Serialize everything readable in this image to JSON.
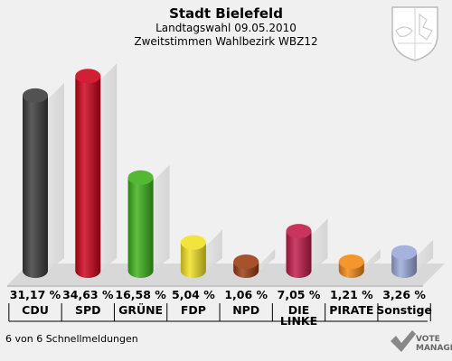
{
  "header": {
    "title": "Stadt Bielefeld",
    "line1": "Landtagswahl 09.05.2010",
    "line2": "Zweitstimmen Wahlbezirk WBZ12"
  },
  "footer": {
    "note": "6 von 6 Schnellmeldungen",
    "watermark_line1": "VOTE",
    "watermark_line2": "MANAGER"
  },
  "chart_data": {
    "type": "bar",
    "title": "Stadt Bielefeld",
    "categories": [
      "CDU",
      "SPD",
      "GRÜNE",
      "FDP",
      "NPD",
      "DIE LINKE",
      "PIRATE",
      "Sonstige"
    ],
    "category_lines": [
      [
        "CDU"
      ],
      [
        "SPD"
      ],
      [
        "GRÜNE"
      ],
      [
        "FDP"
      ],
      [
        "NPD"
      ],
      [
        "DIE",
        "LINKE"
      ],
      [
        "PIRATE"
      ],
      [
        "Sonstige"
      ]
    ],
    "values": [
      31.17,
      34.63,
      16.58,
      5.04,
      1.06,
      7.05,
      1.21,
      3.26
    ],
    "value_labels": [
      "31,17 %",
      "34,63 %",
      "16,58 %",
      "5,04 %",
      "1,06 %",
      "7,05 %",
      "1,21 %",
      "3,26 %"
    ],
    "colors": [
      "#3a3a3a",
      "#cc0018",
      "#3cb01a",
      "#f0e020",
      "#9a3a10",
      "#c01848",
      "#f08810",
      "#98a8d8"
    ],
    "ylim": [
      0,
      35
    ],
    "grid": false,
    "legend": "none"
  }
}
